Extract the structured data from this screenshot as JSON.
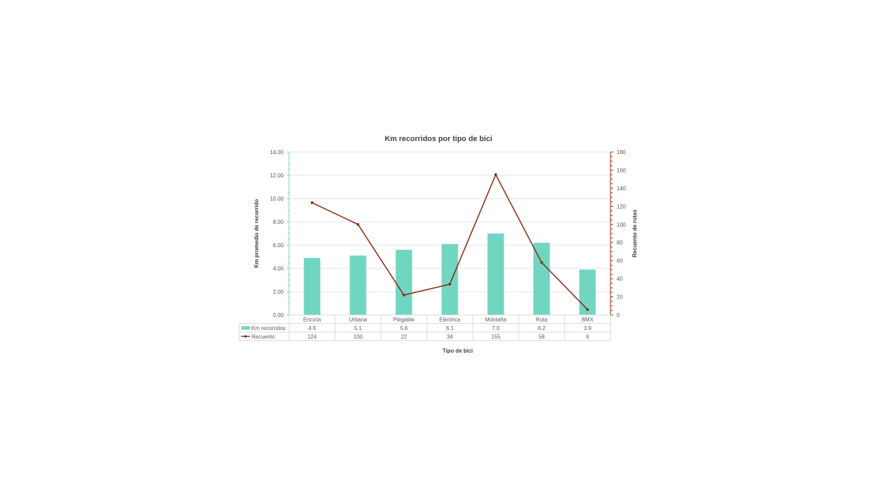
{
  "chart_data": {
    "type": "bar",
    "title": "Km recorridos por tipo de bici",
    "xlabel": "Tipo de bici",
    "ylabel": "Km promedio de recorrido",
    "y2label": "Recuento de rutas",
    "categories": [
      "Encicla",
      "Urbana",
      "Plegable",
      "Eléctrica",
      "Montaña",
      "Ruta",
      "BMX"
    ],
    "series": [
      {
        "name": "Km recorridos",
        "type": "bar",
        "axis": "left",
        "color": "#70d6c2",
        "values": [
          4.9,
          5.1,
          5.6,
          6.1,
          7.0,
          6.2,
          3.9
        ],
        "labels": [
          "4.9",
          "5.1",
          "5.6",
          "6.1",
          "7.0",
          "6.2",
          "3.9"
        ]
      },
      {
        "name": "Recuento",
        "type": "line",
        "axis": "right",
        "color": "#8b2d14",
        "values": [
          124,
          100,
          22,
          34,
          155,
          58,
          6
        ],
        "labels": [
          "124",
          "100",
          "22",
          "34",
          "155",
          "58",
          "6"
        ]
      }
    ],
    "ylim": [
      0,
      14
    ],
    "yticks": [
      "0.00",
      "2.00",
      "4.00",
      "6.00",
      "8.00",
      "10.00",
      "12.00",
      "14.00"
    ],
    "y2lim": [
      0,
      180
    ],
    "y2ticks": [
      "0",
      "20",
      "40",
      "60",
      "80",
      "100",
      "120",
      "140",
      "160",
      "180"
    ],
    "grid": true,
    "legend": "data-table",
    "left_axis_color": "#70d6c2",
    "right_axis_color": "#8b2d14"
  }
}
